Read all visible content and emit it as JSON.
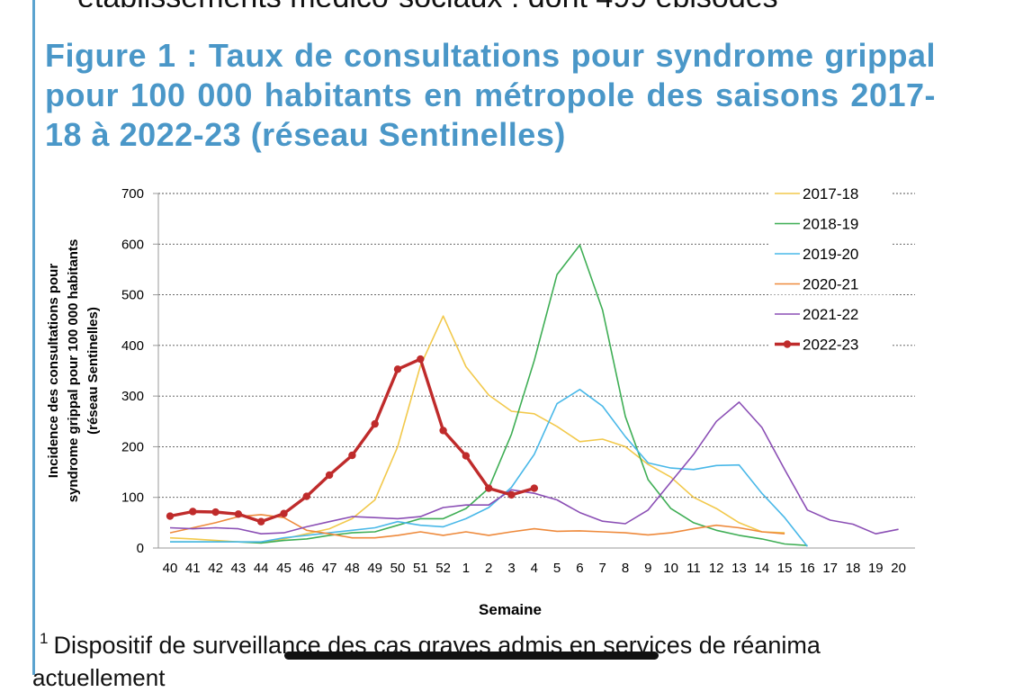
{
  "page": {
    "top_cut_text": "établissements médico-sociaux ; dont 499 épisodes",
    "figure_title": "Figure 1 : Taux de consultations pour syndrome grippal pour 100 000 habitants en métropole des saisons 2017-18 à 2022-23 (réseau Sentinelles)",
    "footnote_marker": "1",
    "footnote_text": "Dispositif de surveillance des cas graves admis en services de réanima",
    "footnote_cut": "actuellement"
  },
  "chart_data": {
    "type": "line",
    "title": "",
    "xlabel": "Semaine",
    "ylabel": "Incidence des consultations pour syndrome grippal pour 100 000 habitants (réseau Sentinelles)",
    "ylabel_lines": [
      "Incidence des consultations pour",
      "syndrome grippal pour 100 000 habitants",
      "(réseau Sentinelles)"
    ],
    "ylim": [
      0,
      700
    ],
    "yticks": [
      "0",
      "100",
      "200",
      "300",
      "400",
      "500",
      "600",
      "700"
    ],
    "grid": "horizontal dashed",
    "legend_position": "top-right",
    "categories": [
      "40",
      "41",
      "42",
      "43",
      "44",
      "45",
      "46",
      "47",
      "48",
      "49",
      "50",
      "51",
      "52",
      "1",
      "2",
      "3",
      "4",
      "5",
      "6",
      "7",
      "8",
      "9",
      "10",
      "11",
      "12",
      "13",
      "14",
      "15",
      "16",
      "17",
      "18",
      "19",
      "20"
    ],
    "series": [
      {
        "name": "2017-18",
        "color": "#f2c94c",
        "width": 1.6,
        "markers": false,
        "values": [
          20,
          18,
          15,
          12,
          12,
          18,
          28,
          38,
          58,
          95,
          200,
          360,
          458,
          358,
          302,
          270,
          265,
          240,
          210,
          215,
          200,
          165,
          140,
          100,
          78,
          50,
          32,
          30,
          null,
          null,
          null,
          null,
          null
        ]
      },
      {
        "name": "2018-19",
        "color": "#3fae55",
        "width": 1.6,
        "markers": false,
        "values": [
          12,
          12,
          12,
          12,
          10,
          15,
          18,
          25,
          30,
          32,
          45,
          58,
          58,
          78,
          118,
          225,
          370,
          540,
          598,
          470,
          260,
          135,
          78,
          50,
          35,
          25,
          18,
          8,
          5,
          null,
          null,
          null,
          null
        ]
      },
      {
        "name": "2019-20",
        "color": "#49b8e8",
        "width": 1.6,
        "markers": false,
        "values": [
          12,
          12,
          12,
          12,
          12,
          20,
          25,
          30,
          35,
          40,
          52,
          45,
          42,
          58,
          80,
          120,
          185,
          285,
          313,
          280,
          220,
          168,
          158,
          155,
          163,
          164,
          108,
          60,
          3,
          null,
          null,
          null,
          null
        ]
      },
      {
        "name": "2020-21",
        "color": "#ee8a3c",
        "width": 1.6,
        "markers": false,
        "values": [
          30,
          40,
          50,
          62,
          66,
          60,
          35,
          28,
          20,
          20,
          25,
          32,
          25,
          32,
          25,
          32,
          38,
          33,
          34,
          32,
          30,
          26,
          30,
          38,
          45,
          40,
          32,
          28,
          null,
          null,
          null,
          null,
          null
        ]
      },
      {
        "name": "2021-22",
        "color": "#8b4fb5",
        "width": 1.6,
        "markers": false,
        "values": [
          40,
          38,
          40,
          38,
          28,
          30,
          42,
          52,
          62,
          60,
          58,
          62,
          80,
          85,
          85,
          115,
          108,
          95,
          70,
          53,
          48,
          75,
          130,
          185,
          250,
          288,
          238,
          155,
          75,
          55,
          47,
          28,
          37
        ]
      },
      {
        "name": "2022-23",
        "color": "#bf2b2b",
        "width": 3.4,
        "markers": true,
        "values": [
          63,
          72,
          71,
          67,
          52,
          68,
          102,
          144,
          183,
          245,
          353,
          373,
          232,
          182,
          118,
          105,
          118,
          null,
          null,
          null,
          null,
          null,
          null,
          null,
          null,
          null,
          null,
          null,
          null,
          null,
          null,
          null,
          null
        ]
      }
    ]
  }
}
